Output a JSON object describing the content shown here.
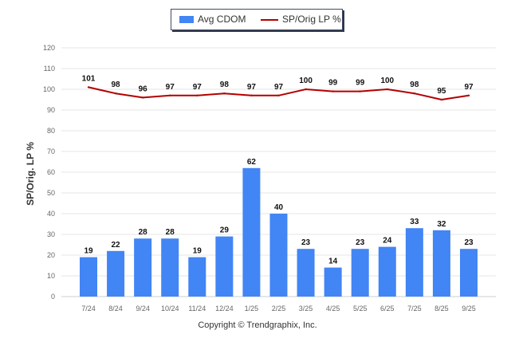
{
  "chart_data": {
    "type": "bar",
    "categories": [
      "7/24",
      "8/24",
      "9/24",
      "10/24",
      "11/24",
      "12/24",
      "1/25",
      "2/25",
      "3/25",
      "4/25",
      "5/25",
      "6/25",
      "7/25",
      "8/25",
      "9/25"
    ],
    "series": [
      {
        "name": "Avg CDOM",
        "type": "bar",
        "color": "#4285f4",
        "values": [
          19,
          22,
          28,
          28,
          19,
          29,
          62,
          40,
          23,
          14,
          23,
          24,
          33,
          32,
          23
        ]
      },
      {
        "name": "SP/Orig LP %",
        "type": "line",
        "color": "#b30000",
        "values": [
          101,
          98,
          96,
          97,
          97,
          98,
          97,
          97,
          100,
          99,
          99,
          100,
          98,
          95,
          97
        ]
      }
    ],
    "title": "",
    "xlabel": "",
    "ylabel": "SP/Orig. LP %",
    "ylim": [
      0,
      120
    ],
    "yticks": [
      0,
      10,
      20,
      30,
      40,
      50,
      60,
      70,
      80,
      90,
      100,
      110,
      120
    ],
    "grid": true,
    "legend_position": "top-center"
  },
  "legend": {
    "bar_label": "Avg CDOM",
    "line_label": "SP/Orig LP %"
  },
  "footer": {
    "copyright": "Copyright © Trendgraphix, Inc."
  }
}
